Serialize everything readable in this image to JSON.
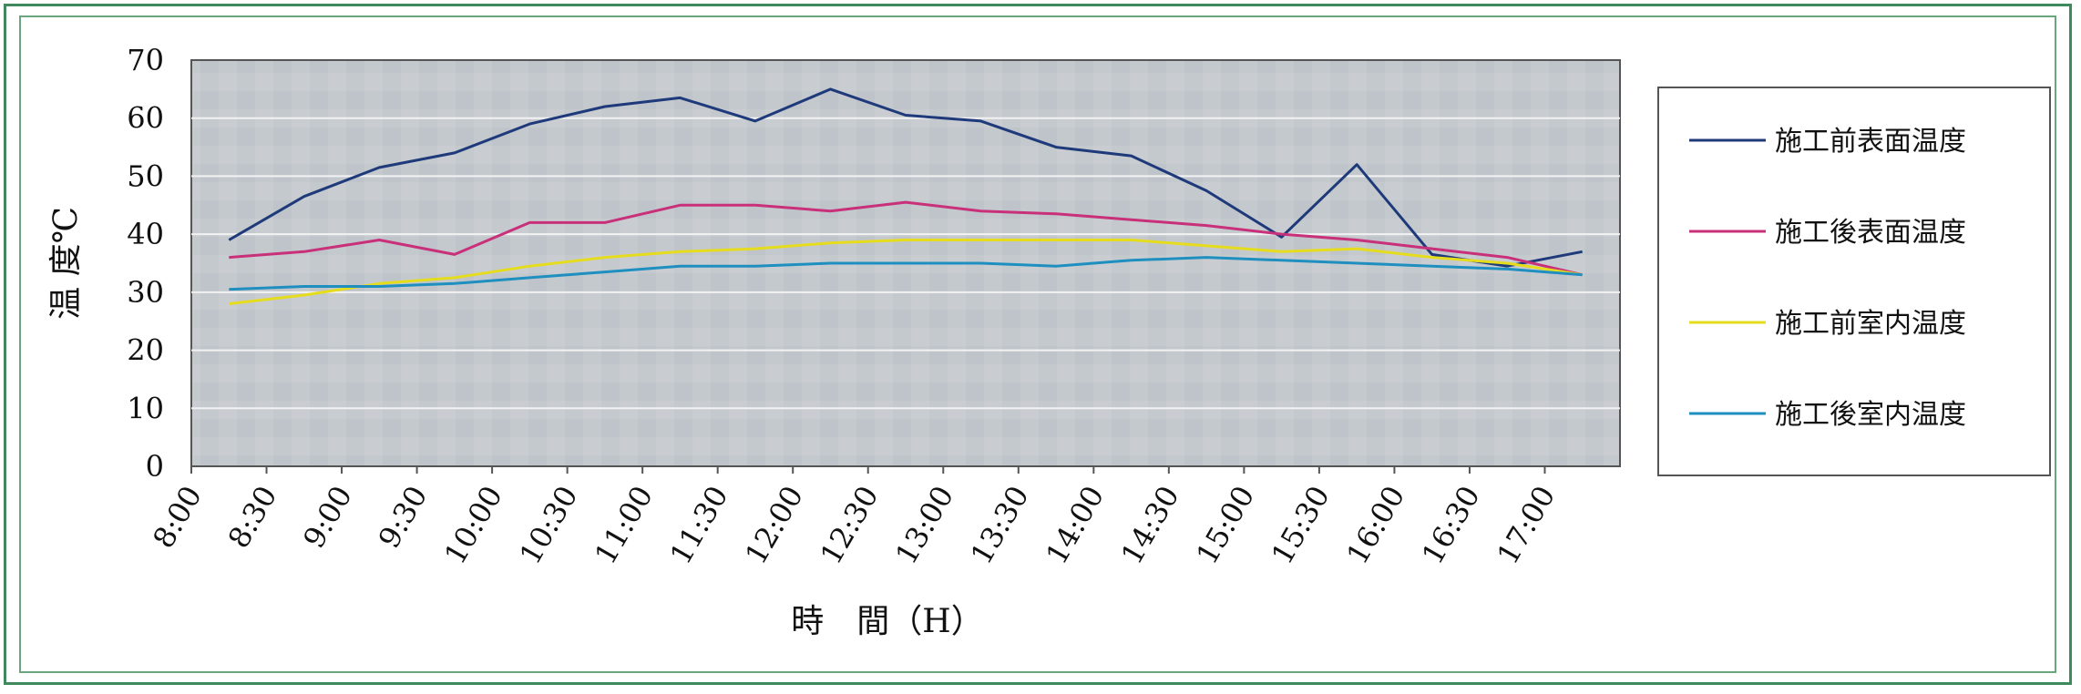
{
  "chart_data": {
    "type": "line",
    "title": "",
    "ylabel": "温 度℃",
    "xlabel": "時　間（H）",
    "ylim": [
      0,
      70
    ],
    "yticks": [
      0,
      10,
      20,
      30,
      40,
      50,
      60,
      70
    ],
    "grid": true,
    "legend_position": "right",
    "xtick_labels": [
      "8:00",
      "8:30",
      "9:00",
      "9:30",
      "10:00",
      "10:30",
      "11:00",
      "11:30",
      "12:00",
      "12:30",
      "13:00",
      "13:30",
      "14:00",
      "14:30",
      "15:00",
      "15:30",
      "16:00",
      "16:30",
      "17:00"
    ],
    "x": [
      "8:15",
      "8:45",
      "9:15",
      "9:45",
      "10:15",
      "10:45",
      "11:15",
      "11:45",
      "12:15",
      "12:45",
      "13:15",
      "13:45",
      "14:15",
      "14:45",
      "15:15",
      "15:45",
      "16:15",
      "16:45",
      "17:15"
    ],
    "series": [
      {
        "name": "施工前表面温度",
        "color": "#1f3a7a",
        "values": [
          39,
          46.5,
          51.5,
          54,
          59,
          62,
          63.5,
          59.5,
          65,
          60.5,
          59.5,
          55,
          53.5,
          47.5,
          39.5,
          52,
          36.5,
          34.5,
          37
        ]
      },
      {
        "name": "施工後表面温度",
        "color": "#c8307a",
        "values": [
          36,
          37,
          39,
          36.5,
          42,
          42,
          45,
          45,
          44,
          45.5,
          44,
          43.5,
          42.5,
          41.5,
          40,
          39,
          37.5,
          36,
          33
        ]
      },
      {
        "name": "施工前室内温度",
        "color": "#e6dc1e",
        "values": [
          28,
          29.5,
          31.5,
          32.5,
          34.5,
          36,
          37,
          37.5,
          38.5,
          39,
          39,
          39,
          39,
          38,
          37,
          37.5,
          36,
          35,
          33
        ]
      },
      {
        "name": "施工後室内温度",
        "color": "#1f8fc0",
        "values": [
          30.5,
          31,
          31,
          31.5,
          32.5,
          33.5,
          34.5,
          34.5,
          35,
          35,
          35,
          34.5,
          35.5,
          36,
          35.5,
          35,
          34.5,
          34,
          33
        ]
      }
    ]
  }
}
